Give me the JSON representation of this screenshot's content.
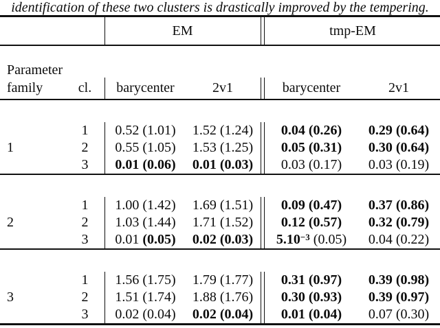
{
  "caption": "identification of these two clusters is drastically improved by the tempering.",
  "table": {
    "group_headers": [
      "EM",
      "tmp-EM"
    ],
    "row_header": {
      "line1": "Parameter",
      "line2": "family",
      "cl": "cl."
    },
    "sub_headers": [
      "barycenter",
      "2v1",
      "barycenter",
      "2v1"
    ],
    "blocks": [
      {
        "family": "1",
        "rows": [
          {
            "cl": "1",
            "cells": [
              {
                "v": "0.52",
                "s": "(1.01)",
                "vb": false,
                "sb": false
              },
              {
                "v": "1.52",
                "s": "(1.24)",
                "vb": false,
                "sb": false
              },
              {
                "v": "0.04",
                "s": "(0.26)",
                "vb": true,
                "sb": true
              },
              {
                "v": "0.29",
                "s": "(0.64)",
                "vb": true,
                "sb": true
              }
            ]
          },
          {
            "cl": "2",
            "cells": [
              {
                "v": "0.55",
                "s": "(1.05)",
                "vb": false,
                "sb": false
              },
              {
                "v": "1.53",
                "s": "(1.25)",
                "vb": false,
                "sb": false
              },
              {
                "v": "0.05",
                "s": "(0.31)",
                "vb": true,
                "sb": true
              },
              {
                "v": "0.30",
                "s": "(0.64)",
                "vb": true,
                "sb": true
              }
            ]
          },
          {
            "cl": "3",
            "cells": [
              {
                "v": "0.01",
                "s": "(0.06)",
                "vb": true,
                "sb": true
              },
              {
                "v": "0.01",
                "s": "(0.03)",
                "vb": true,
                "sb": true
              },
              {
                "v": "0.03",
                "s": "(0.17)",
                "vb": false,
                "sb": false
              },
              {
                "v": "0.03",
                "s": "(0.19)",
                "vb": false,
                "sb": false
              }
            ]
          }
        ]
      },
      {
        "family": "2",
        "rows": [
          {
            "cl": "1",
            "cells": [
              {
                "v": "1.00",
                "s": "(1.42)",
                "vb": false,
                "sb": false
              },
              {
                "v": "1.69",
                "s": "(1.51)",
                "vb": false,
                "sb": false
              },
              {
                "v": "0.09",
                "s": "(0.47)",
                "vb": true,
                "sb": true
              },
              {
                "v": "0.37",
                "s": "(0.86)",
                "vb": true,
                "sb": true
              }
            ]
          },
          {
            "cl": "2",
            "cells": [
              {
                "v": "1.03",
                "s": "(1.44)",
                "vb": false,
                "sb": false
              },
              {
                "v": "1.71",
                "s": "(1.52)",
                "vb": false,
                "sb": false
              },
              {
                "v": "0.12",
                "s": "(0.57)",
                "vb": true,
                "sb": true
              },
              {
                "v": "0.32",
                "s": "(0.79)",
                "vb": true,
                "sb": true
              }
            ]
          },
          {
            "cl": "3",
            "cells": [
              {
                "v": "0.01",
                "s": "(0.05)",
                "vb": false,
                "sb": true
              },
              {
                "v": "0.02",
                "s": "(0.03)",
                "vb": true,
                "sb": true
              },
              {
                "v": "5.10",
                "sup": "−3",
                "s": "(0.05)",
                "vb": true,
                "sb": false
              },
              {
                "v": "0.04",
                "s": "(0.22)",
                "vb": false,
                "sb": false
              }
            ]
          }
        ]
      },
      {
        "family": "3",
        "rows": [
          {
            "cl": "1",
            "cells": [
              {
                "v": "1.56",
                "s": "(1.75)",
                "vb": false,
                "sb": false
              },
              {
                "v": "1.79",
                "s": "(1.77)",
                "vb": false,
                "sb": false
              },
              {
                "v": "0.31",
                "s": "(0.97)",
                "vb": true,
                "sb": true
              },
              {
                "v": "0.39",
                "s": "(0.98)",
                "vb": true,
                "sb": true
              }
            ]
          },
          {
            "cl": "2",
            "cells": [
              {
                "v": "1.51",
                "s": "(1.74)",
                "vb": false,
                "sb": false
              },
              {
                "v": "1.88",
                "s": "(1.76)",
                "vb": false,
                "sb": false
              },
              {
                "v": "0.30",
                "s": "(0.93)",
                "vb": true,
                "sb": true
              },
              {
                "v": "0.39",
                "s": "(0.97)",
                "vb": true,
                "sb": true
              }
            ]
          },
          {
            "cl": "3",
            "cells": [
              {
                "v": "0.02",
                "s": "(0.04)",
                "vb": false,
                "sb": false
              },
              {
                "v": "0.02",
                "s": "(0.04)",
                "vb": true,
                "sb": true
              },
              {
                "v": "0.01",
                "s": "(0.04)",
                "vb": true,
                "sb": true
              },
              {
                "v": "0.07",
                "s": "(0.30)",
                "vb": false,
                "sb": false
              }
            ]
          }
        ]
      }
    ]
  }
}
